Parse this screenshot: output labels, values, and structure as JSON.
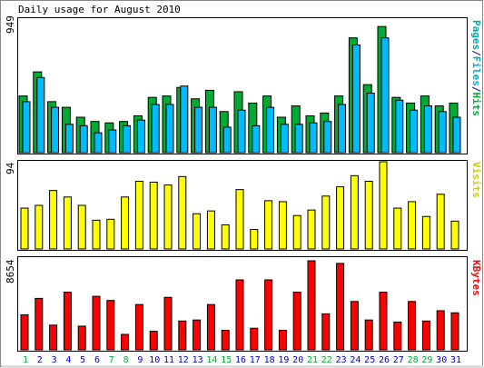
{
  "title": "Daily usage for August 2010",
  "colors": {
    "hits": "#00aa33",
    "files": "#00bbff",
    "pages": "#00cccc",
    "visits": "#ffff00",
    "kbytes": "#ff0000",
    "weekday_label": "#0000cc",
    "weekend_label": "#00aa33",
    "frame": "#000000"
  },
  "legend_right": {
    "top": [
      {
        "text": "Pages",
        "color": "#00aaaa"
      },
      {
        "text": "/",
        "color": "#0000cc"
      },
      {
        "text": "Files",
        "color": "#00aacc"
      },
      {
        "text": "/",
        "color": "#0000cc"
      },
      {
        "text": "Hits",
        "color": "#00aa33"
      }
    ],
    "middle": [
      {
        "text": "Visits",
        "color": "#cccc00"
      }
    ],
    "bottom": [
      {
        "text": "KBytes",
        "color": "#ff0000"
      }
    ]
  },
  "chart_data": [
    {
      "type": "bar",
      "panel": "hits-files-pages",
      "ymax_label": "949",
      "ylim": [
        0,
        949
      ],
      "categories": [
        "1",
        "2",
        "3",
        "4",
        "5",
        "6",
        "7",
        "8",
        "9",
        "10",
        "11",
        "12",
        "13",
        "14",
        "15",
        "16",
        "17",
        "18",
        "19",
        "20",
        "21",
        "22",
        "23",
        "24",
        "25",
        "26",
        "27",
        "28",
        "29",
        "30",
        "31"
      ],
      "weekend_days": [
        "1",
        "7",
        "8",
        "14",
        "15",
        "21",
        "22",
        "28",
        "29"
      ],
      "series": [
        {
          "name": "Hits",
          "color": "#00aa33",
          "values": [
            400,
            570,
            360,
            320,
            250,
            220,
            210,
            220,
            260,
            390,
            400,
            460,
            380,
            440,
            290,
            430,
            350,
            400,
            250,
            330,
            260,
            280,
            400,
            810,
            480,
            890,
            390,
            350,
            400,
            330,
            350
          ]
        },
        {
          "name": "Files",
          "color": "#00bbff",
          "values": [
            360,
            530,
            320,
            200,
            190,
            140,
            160,
            190,
            230,
            340,
            340,
            470,
            320,
            320,
            180,
            300,
            190,
            320,
            200,
            200,
            210,
            220,
            340,
            760,
            420,
            810,
            370,
            300,
            330,
            290,
            250
          ]
        },
        {
          "name": "Pages",
          "color": "#00cccc",
          "values": [
            260,
            350,
            250,
            170,
            150,
            120,
            130,
            150,
            190,
            250,
            260,
            300,
            240,
            260,
            150,
            280,
            170,
            240,
            160,
            180,
            180,
            190,
            260,
            480,
            300,
            520,
            250,
            230,
            250,
            220,
            200
          ]
        }
      ]
    },
    {
      "type": "bar",
      "panel": "visits",
      "ymax_label": "94",
      "ylim": [
        0,
        94
      ],
      "categories": [
        "1",
        "2",
        "3",
        "4",
        "5",
        "6",
        "7",
        "8",
        "9",
        "10",
        "11",
        "12",
        "13",
        "14",
        "15",
        "16",
        "17",
        "18",
        "19",
        "20",
        "21",
        "22",
        "23",
        "24",
        "25",
        "26",
        "27",
        "28",
        "29",
        "30",
        "31"
      ],
      "series": [
        {
          "name": "Visits",
          "color": "#ffff00",
          "values": [
            44,
            47,
            63,
            56,
            47,
            31,
            32,
            56,
            73,
            72,
            69,
            78,
            38,
            41,
            26,
            64,
            21,
            52,
            51,
            36,
            42,
            57,
            67,
            79,
            73,
            94,
            44,
            51,
            35,
            59,
            30
          ]
        }
      ]
    },
    {
      "type": "bar",
      "panel": "kbytes",
      "ymax_label": "8654",
      "ylim": [
        0,
        8654
      ],
      "categories": [
        "1",
        "2",
        "3",
        "4",
        "5",
        "6",
        "7",
        "8",
        "9",
        "10",
        "11",
        "12",
        "13",
        "14",
        "15",
        "16",
        "17",
        "18",
        "19",
        "20",
        "21",
        "22",
        "23",
        "24",
        "25",
        "26",
        "27",
        "28",
        "29",
        "30",
        "31"
      ],
      "series": [
        {
          "name": "KBytes",
          "color": "#ff0000",
          "values": [
            3400,
            5000,
            2400,
            5600,
            2300,
            5200,
            4800,
            1500,
            4400,
            1800,
            5100,
            2800,
            2900,
            4400,
            1900,
            6800,
            2100,
            6800,
            1900,
            5600,
            8654,
            3500,
            8400,
            4700,
            2900,
            5600,
            2700,
            4700,
            2800,
            3800,
            3600
          ]
        }
      ]
    }
  ]
}
